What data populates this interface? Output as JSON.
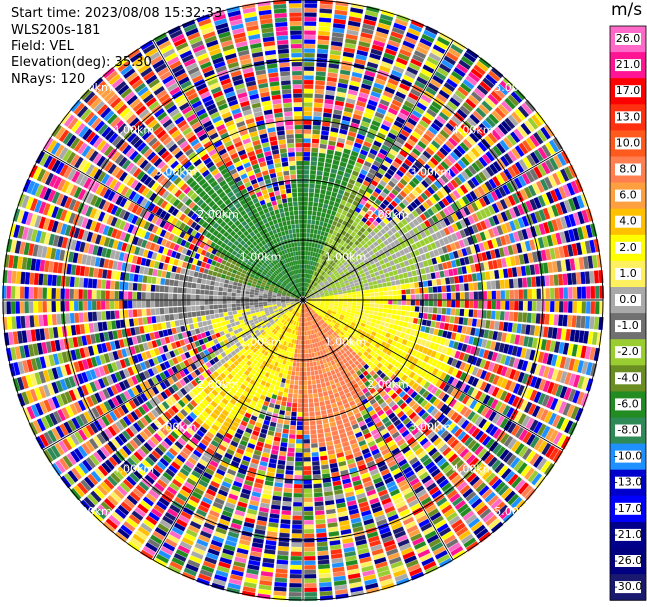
{
  "header": {
    "start_time": "Start time: 2023/08/08 15:32:33",
    "instrument": "WLS200s-181",
    "field": "Field: VEL",
    "elevation": "Elevation(deg): 35.30",
    "nrays": "NRays: 120"
  },
  "colorbar": {
    "unit": "m/s",
    "ticks": [
      "26.0",
      "21.0",
      "17.0",
      "13.0",
      "10.0",
      "8.0",
      "6.0",
      "4.0",
      "2.0",
      "1.0",
      "0.0",
      "-1.0",
      "-2.0",
      "-4.0",
      "-6.0",
      "-8.0",
      "-10.0",
      "-13.0",
      "-17.0",
      "-21.0",
      "-26.0",
      "-30.0"
    ],
    "colors": [
      "#ff69c8",
      "#ff1493",
      "#ff0000",
      "#ff3010",
      "#ff5a1e",
      "#ff7f50",
      "#ffa040",
      "#ffc000",
      "#ffff00",
      "#fff060",
      "#a9a9a9",
      "#707070",
      "#9acd32",
      "#6b8e23",
      "#228b22",
      "#2e8b57",
      "#1e90ff",
      "#0000cd",
      "#0000ff",
      "#00008b",
      "#000080",
      "#191970"
    ]
  },
  "chart_data": {
    "type": "heatmap",
    "subtype": "radar-ppi",
    "range_ring_labels": [
      "1.00km",
      "2.00km",
      "3.00km",
      "4.00km",
      "5.00km"
    ],
    "range_rings_km": [
      1,
      2,
      3,
      4,
      5
    ],
    "max_range_km": 5,
    "azimuth_spokes_deg": [
      0,
      30,
      60,
      90,
      120,
      150,
      180,
      210,
      240,
      270,
      300,
      330
    ],
    "nrays": 120,
    "value_range": [
      -30,
      26
    ],
    "inner_field_summary": [
      {
        "sector": "north-northwest",
        "velocity_class": "-6.0 to -4.0"
      },
      {
        "sector": "east",
        "velocity_class": "0.0 to 1.0"
      },
      {
        "sector": "south-southeast",
        "velocity_class": "4.0 to 8.0"
      },
      {
        "sector": "south-southwest",
        "velocity_class": "2.0 to 4.0"
      },
      {
        "sector": "west",
        "velocity_class": "-1.0 to 0.0"
      }
    ],
    "outer_field": "noise (random colors) beyond ~2.3km"
  }
}
